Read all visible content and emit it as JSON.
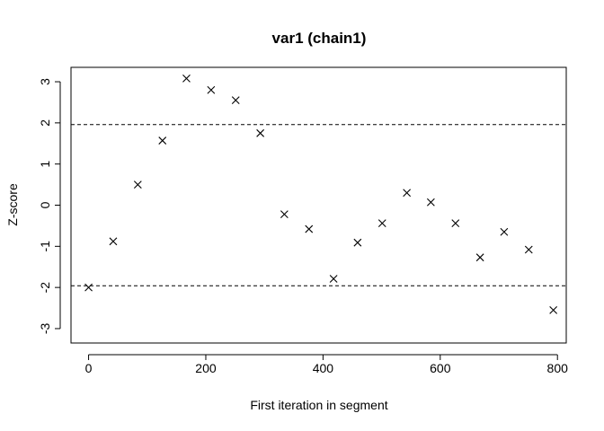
{
  "chart_data": {
    "type": "scatter",
    "title": "var1 (chain1)",
    "xlabel": "First iteration in segment",
    "ylabel": "Z-score",
    "xlim": [
      -30,
      815
    ],
    "ylim": [
      -3.35,
      3.35
    ],
    "x_ticks": [
      0,
      200,
      400,
      600,
      800
    ],
    "y_ticks": [
      -3,
      -2,
      -1,
      0,
      1,
      2,
      3
    ],
    "x_tick_labels": [
      "0",
      "200",
      "400",
      "600",
      "800"
    ],
    "y_tick_labels": [
      "-3",
      "-2",
      "-1",
      "0",
      "1",
      "2",
      "3"
    ],
    "reference_lines": [
      1.96,
      -1.96
    ],
    "marker": "x",
    "grid": false,
    "points": [
      {
        "x": 0,
        "y": -2.0
      },
      {
        "x": 42,
        "y": -0.88
      },
      {
        "x": 84,
        "y": 0.5
      },
      {
        "x": 126,
        "y": 1.57
      },
      {
        "x": 167,
        "y": 3.08
      },
      {
        "x": 209,
        "y": 2.8
      },
      {
        "x": 251,
        "y": 2.55
      },
      {
        "x": 293,
        "y": 1.75
      },
      {
        "x": 334,
        "y": -0.22
      },
      {
        "x": 376,
        "y": -0.58
      },
      {
        "x": 418,
        "y": -1.79
      },
      {
        "x": 459,
        "y": -0.91
      },
      {
        "x": 501,
        "y": -0.44
      },
      {
        "x": 543,
        "y": 0.3
      },
      {
        "x": 584,
        "y": 0.07
      },
      {
        "x": 626,
        "y": -0.44
      },
      {
        "x": 668,
        "y": -1.27
      },
      {
        "x": 709,
        "y": -0.65
      },
      {
        "x": 751,
        "y": -1.08
      },
      {
        "x": 793,
        "y": -2.55
      }
    ]
  }
}
